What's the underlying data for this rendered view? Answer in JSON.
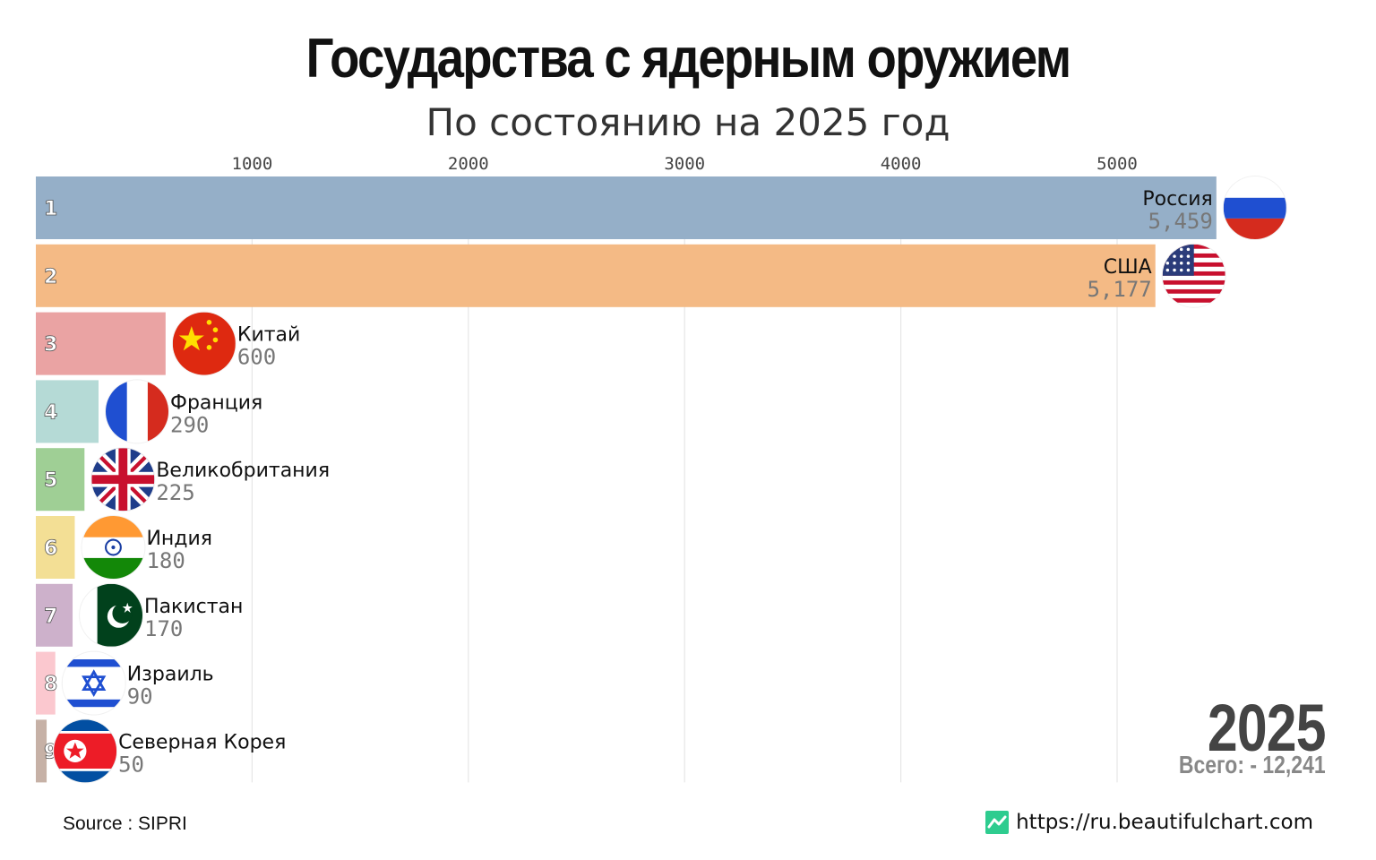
{
  "title": "Государства с ядерным оружием",
  "subtitle": "По состоянию на 2025 год",
  "year": "2025",
  "total_text": "Всего: - 12,241",
  "source": "Source : SIPRI",
  "site": "https://ru.beautifulchart.com",
  "chart_data": {
    "type": "bar",
    "orientation": "horizontal",
    "title": "Государства с ядерным оружием",
    "subtitle": "По состоянию на 2025 год",
    "xlim": [
      0,
      5700
    ],
    "xticks": [
      1000,
      2000,
      3000,
      4000,
      5000
    ],
    "grid": true,
    "categories": [
      "Россия",
      "США",
      "Китай",
      "Франция",
      "Великобритания",
      "Индия",
      "Пакистан",
      "Израиль",
      "Северная Корея"
    ],
    "values": [
      5459,
      5177,
      600,
      290,
      225,
      180,
      170,
      90,
      50
    ],
    "value_labels": [
      "5,459",
      "5,177",
      "600",
      "290",
      "225",
      "180",
      "170",
      "90",
      "50"
    ],
    "ranks": [
      "1",
      "2",
      "3",
      "4",
      "5",
      "6",
      "7",
      "8",
      "9"
    ],
    "colors": [
      "#95afc8",
      "#f4ba85",
      "#eaa3a3",
      "#b5dad6",
      "#9fcf95",
      "#f3df95",
      "#cdb1cb",
      "#fbc8cf",
      "#c6b1a6"
    ],
    "flags": [
      "russia-flag-icon",
      "usa-flag-icon",
      "china-flag-icon",
      "france-flag-icon",
      "uk-flag-icon",
      "india-flag-icon",
      "pakistan-flag-icon",
      "israel-flag-icon",
      "north-korea-flag-icon"
    ]
  }
}
